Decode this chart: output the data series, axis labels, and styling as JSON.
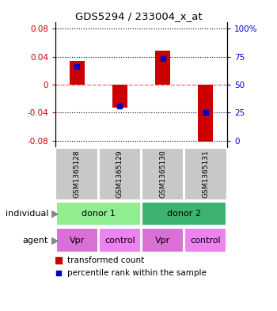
{
  "title": "GDS5294 / 233004_x_at",
  "samples": [
    "GSM1365128",
    "GSM1365129",
    "GSM1365130",
    "GSM1365131"
  ],
  "red_bars": [
    0.034,
    -0.033,
    0.049,
    -0.082
  ],
  "blue_marks": [
    0.026,
    -0.031,
    0.037,
    -0.04
  ],
  "ylim": [
    -0.09,
    0.09
  ],
  "yticks_left": [
    -0.08,
    -0.04,
    0.0,
    0.04,
    0.08
  ],
  "yticks_right": [
    0,
    25,
    50,
    75,
    100
  ],
  "yticks_right_vals": [
    -0.08,
    -0.04,
    0.0,
    0.04,
    0.08
  ],
  "individual_labels": [
    "donor 1",
    "donor 2"
  ],
  "agent_labels": [
    "Vpr",
    "control",
    "Vpr",
    "control"
  ],
  "individual_color_1": "#90EE90",
  "individual_color_2": "#3CB371",
  "agent_color_vpr": "#DA70D6",
  "agent_color_control": "#EE82EE",
  "sample_bg_color": "#C8C8C8",
  "bar_color_red": "#CC0000",
  "bar_color_blue": "#0000CC",
  "zero_line_color": "#FF6666",
  "left_label_color": "#CC0000",
  "right_label_color": "#0000CC",
  "bar_width": 0.35
}
